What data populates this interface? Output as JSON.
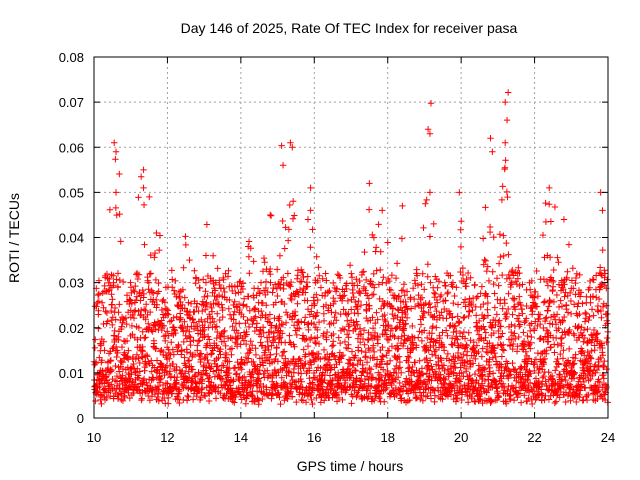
{
  "chart_data": {
    "type": "scatter",
    "title": "Day 146 of 2025, Rate Of TEC Index for receiver pasa",
    "xlabel": "GPS time / hours",
    "ylabel": "ROTI / TECUs",
    "xlim": [
      10,
      24
    ],
    "ylim": [
      0,
      0.08
    ],
    "x_ticks": [
      10,
      12,
      14,
      16,
      18,
      20,
      22,
      24
    ],
    "x_tick_labels": [
      "10",
      "12",
      "14",
      "16",
      "18",
      "20",
      "22",
      "24"
    ],
    "y_ticks": [
      0,
      0.01,
      0.02,
      0.03,
      0.04,
      0.05,
      0.06,
      0.07,
      0.08
    ],
    "y_tick_labels": [
      "0",
      "0.01",
      "0.02",
      "0.03",
      "0.04",
      "0.05",
      "0.06",
      "0.07",
      "0.08"
    ],
    "grid": true,
    "marker": "plus",
    "color": "#ff0000",
    "series": [
      {
        "name": "ROTI",
        "baseline_range": [
          0.003,
          0.03
        ],
        "sample_interval_hours": 0.015,
        "notable_peaks": [
          {
            "x": 10.55,
            "y": 0.061
          },
          {
            "x": 10.6,
            "y": 0.059
          },
          {
            "x": 10.6,
            "y": 0.05
          },
          {
            "x": 11.35,
            "y": 0.055
          },
          {
            "x": 11.35,
            "y": 0.051
          },
          {
            "x": 11.7,
            "y": 0.041
          },
          {
            "x": 12.6,
            "y": 0.035
          },
          {
            "x": 13.05,
            "y": 0.036
          },
          {
            "x": 14.2,
            "y": 0.038
          },
          {
            "x": 14.8,
            "y": 0.045
          },
          {
            "x": 15.15,
            "y": 0.056
          },
          {
            "x": 15.35,
            "y": 0.061
          },
          {
            "x": 15.4,
            "y": 0.06
          },
          {
            "x": 15.9,
            "y": 0.051
          },
          {
            "x": 15.9,
            "y": 0.046
          },
          {
            "x": 17.5,
            "y": 0.052
          },
          {
            "x": 17.85,
            "y": 0.046
          },
          {
            "x": 18.4,
            "y": 0.047
          },
          {
            "x": 19.1,
            "y": 0.064
          },
          {
            "x": 19.15,
            "y": 0.063
          },
          {
            "x": 19.15,
            "y": 0.05
          },
          {
            "x": 19.95,
            "y": 0.05
          },
          {
            "x": 20.8,
            "y": 0.062
          },
          {
            "x": 20.85,
            "y": 0.059
          },
          {
            "x": 21.2,
            "y": 0.07
          },
          {
            "x": 21.25,
            "y": 0.066
          },
          {
            "x": 21.2,
            "y": 0.061
          },
          {
            "x": 22.4,
            "y": 0.051
          },
          {
            "x": 22.8,
            "y": 0.044
          },
          {
            "x": 23.8,
            "y": 0.05
          },
          {
            "x": 23.85,
            "y": 0.046
          }
        ]
      }
    ]
  }
}
